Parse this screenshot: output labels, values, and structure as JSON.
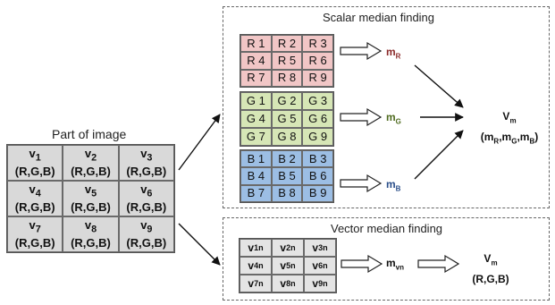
{
  "image_panel": {
    "title": "Part of image",
    "cells": [
      {
        "v": "v",
        "sub": "1",
        "rgb": "(R,G,B)"
      },
      {
        "v": "v",
        "sub": "2",
        "rgb": "(R,G,B)"
      },
      {
        "v": "v",
        "sub": "3",
        "rgb": "(R,G,B)"
      },
      {
        "v": "v",
        "sub": "4",
        "rgb": "(R,G,B)"
      },
      {
        "v": "v",
        "sub": "5",
        "rgb": "(R,G,B)"
      },
      {
        "v": "v",
        "sub": "6",
        "rgb": "(R,G,B)"
      },
      {
        "v": "v",
        "sub": "7",
        "rgb": "(R,G,B)"
      },
      {
        "v": "v",
        "sub": "8",
        "rgb": "(R,G,B)"
      },
      {
        "v": "v",
        "sub": "9",
        "rgb": "(R,G,B)"
      }
    ]
  },
  "scalar": {
    "title": "Scalar median finding",
    "red": [
      "R 1",
      "R 2",
      "R 3",
      "R 4",
      "R 5",
      "R 6",
      "R 7",
      "R 8",
      "R 9"
    ],
    "green": [
      "G 1",
      "G 2",
      "G 3",
      "G 4",
      "G 5",
      "G 6",
      "G 7",
      "G 8",
      "G 9"
    ],
    "blue": [
      "B 1",
      "B 2",
      "B 3",
      "B 4",
      "B 5",
      "B 6",
      "B 7",
      "B 8",
      "B 9"
    ],
    "m_red": {
      "m": "m",
      "sub": "R"
    },
    "m_green": {
      "m": "m",
      "sub": "G"
    },
    "m_blue": {
      "m": "m",
      "sub": "B"
    },
    "result": {
      "v": "V",
      "sub": "m",
      "line2": "(m",
      "r": "R",
      "g": "G",
      "b": "B"
    }
  },
  "vector": {
    "title": "Vector median finding",
    "cells": [
      {
        "v": "v",
        "sub": "1n"
      },
      {
        "v": "v",
        "sub": "2n"
      },
      {
        "v": "v",
        "sub": "3n"
      },
      {
        "v": "v",
        "sub": "4n"
      },
      {
        "v": "v",
        "sub": "5n"
      },
      {
        "v": "v",
        "sub": "6n"
      },
      {
        "v": "v",
        "sub": "7n"
      },
      {
        "v": "v",
        "sub": "8n"
      },
      {
        "v": "v",
        "sub": "9n"
      }
    ],
    "m_vector": {
      "m": "m",
      "sub": "vn"
    },
    "result": {
      "v": "V",
      "sub": "m",
      "line2": "(R,G,B)"
    }
  },
  "colors": {
    "red_cells": "#f1c6c6",
    "green_cells": "#d6e6b6",
    "blue_cells": "#9cbee4",
    "m_red": "#8b2a2a",
    "m_green": "#4f6b1f",
    "m_blue": "#2b4f8a",
    "image_cells": "#d9d9d9"
  }
}
